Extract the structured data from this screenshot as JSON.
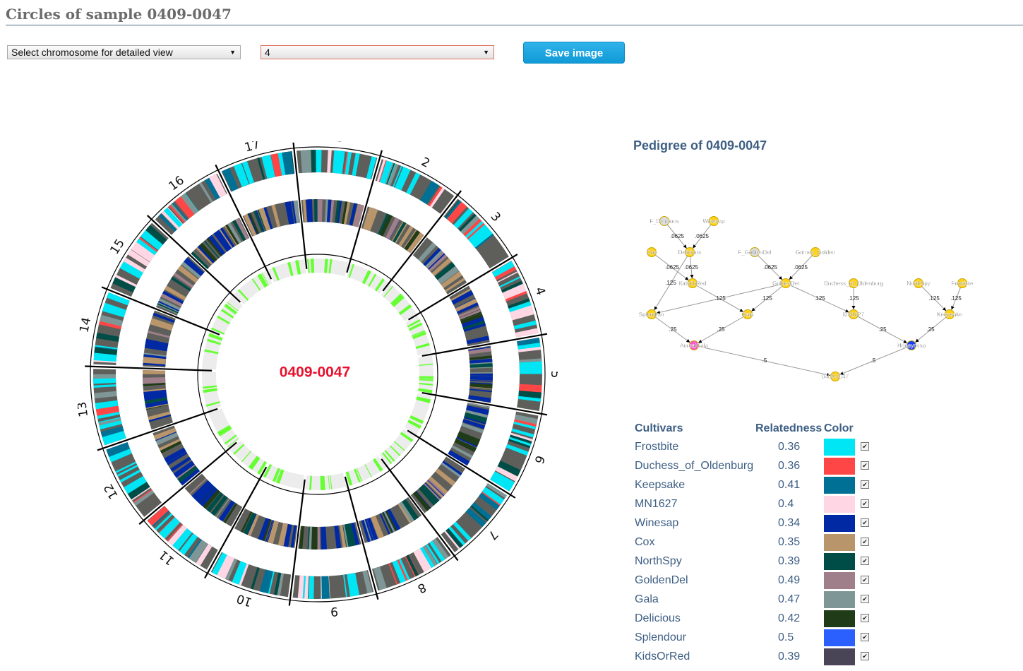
{
  "page": {
    "title": "Circles of sample 0409-0047"
  },
  "controls": {
    "chromosome_select": "Select chromosome for detailed view",
    "level_select": "4",
    "save_button": "Save image"
  },
  "circos": {
    "sample_label": "0409-0047",
    "chromosomes": [
      "1",
      "2",
      "3",
      "4",
      "5",
      "6",
      "7",
      "8",
      "9",
      "10",
      "11",
      "12",
      "13",
      "14",
      "15",
      "16",
      "17"
    ],
    "colors": {
      "base": "#5e5f5b",
      "frostbite": "#00e6f5",
      "duchess": "#ff4646",
      "keepsake": "#007095",
      "mn1627": "#ffd6e4",
      "winesap": "#0029a3",
      "cox": "#b8956a",
      "northspy": "#004d47",
      "goldendel": "#9e7f8a",
      "gala": "#7f9696",
      "delicious": "#1f3b17",
      "outer_stripe": "#00e6f5",
      "inner_stripe": "#66ff33",
      "inner_base": "#ececec",
      "sample_label": "#e8112d"
    }
  },
  "pedigree": {
    "title": "Pedigree of 0409-0047",
    "nodes": [
      {
        "id": "F_Delicious",
        "color": "#d9d9d9"
      },
      {
        "id": "Winesap",
        "color": "#ffd21a"
      },
      {
        "id": "Cox",
        "color": "#ffd21a"
      },
      {
        "id": "Delicious",
        "color": "#ffd21a"
      },
      {
        "id": "F_GoldenDel",
        "color": "#d9d9d9"
      },
      {
        "id": "Grimes_Golden",
        "color": "#ffd21a"
      },
      {
        "id": "KidsOrRed",
        "color": "#ffd21a"
      },
      {
        "id": "GoldenDel",
        "color": "#ffd21a"
      },
      {
        "id": "Duchess_of_Oldenburg",
        "color": "#ffd21a"
      },
      {
        "id": "NorthSpy",
        "color": "#ffd21a"
      },
      {
        "id": "Frostbite",
        "color": "#ffd21a"
      },
      {
        "id": "Splendour",
        "color": "#ffd21a"
      },
      {
        "id": "Gala",
        "color": "#ffd21a"
      },
      {
        "id": "MN1627",
        "color": "#ffd21a"
      },
      {
        "id": "Keepsake",
        "color": "#ffd21a"
      },
      {
        "id": "AurealGala",
        "color": "#ff55cc"
      },
      {
        "id": "Honeycrisp",
        "color": "#1a3cff"
      },
      {
        "id": "0409-0047",
        "color": "#ffd21a"
      }
    ],
    "edges": [
      {
        "from": "F_Delicious",
        "to": "Delicious",
        "label": ".0625"
      },
      {
        "from": "Winesap",
        "to": "Delicious",
        "label": ".0625"
      },
      {
        "from": "Cox",
        "to": "KidsOrRed",
        "label": ".0625"
      },
      {
        "from": "Delicious",
        "to": "KidsOrRed",
        "label": ".0625"
      },
      {
        "from": "Delicious",
        "to": "Splendour",
        "label": ".125"
      },
      {
        "from": "F_GoldenDel",
        "to": "GoldenDel",
        "label": ".0625"
      },
      {
        "from": "Grimes_Golden",
        "to": "GoldenDel",
        "label": ".0625"
      },
      {
        "from": "KidsOrRed",
        "to": "Gala",
        "label": ".125"
      },
      {
        "from": "GoldenDel",
        "to": "Splendour",
        "label": ""
      },
      {
        "from": "GoldenDel",
        "to": "Gala",
        "label": ".125"
      },
      {
        "from": "GoldenDel",
        "to": "MN1627",
        "label": ".125"
      },
      {
        "from": "Duchess_of_Oldenburg",
        "to": "MN1627",
        "label": ".125"
      },
      {
        "from": "NorthSpy",
        "to": "Keepsake",
        "label": ".125"
      },
      {
        "from": "Frostbite",
        "to": "Keepsake",
        "label": ".125"
      },
      {
        "from": "Splendour",
        "to": "AurealGala",
        "label": ".25"
      },
      {
        "from": "Gala",
        "to": "AurealGala",
        "label": ".25"
      },
      {
        "from": "MN1627",
        "to": "Honeycrisp",
        "label": ".25"
      },
      {
        "from": "Keepsake",
        "to": "Honeycrisp",
        "label": ".25"
      },
      {
        "from": "AurealGala",
        "to": "0409-0047",
        "label": ".5"
      },
      {
        "from": "Honeycrisp",
        "to": "0409-0047",
        "label": ".5"
      }
    ]
  },
  "cultivars": {
    "headers": {
      "name": "Cultivars",
      "relatedness": "Relatedness",
      "color": "Color"
    },
    "rows": [
      {
        "name": "Frostbite",
        "relatedness": "0.36",
        "color": "#00e6f5",
        "checked": "✔"
      },
      {
        "name": "Duchess_of_Oldenburg",
        "relatedness": "0.36",
        "color": "#ff4646",
        "checked": "✔"
      },
      {
        "name": "Keepsake",
        "relatedness": "0.41",
        "color": "#007095",
        "checked": "✔"
      },
      {
        "name": "MN1627",
        "relatedness": "0.4",
        "color": "#ffd6e4",
        "checked": "✔"
      },
      {
        "name": "Winesap",
        "relatedness": "0.34",
        "color": "#0029a3",
        "checked": "✔"
      },
      {
        "name": "Cox",
        "relatedness": "0.35",
        "color": "#b8956a",
        "checked": "✔"
      },
      {
        "name": "NorthSpy",
        "relatedness": "0.39",
        "color": "#004d47",
        "checked": "✔"
      },
      {
        "name": "GoldenDel",
        "relatedness": "0.49",
        "color": "#9e7f8a",
        "checked": "✔"
      },
      {
        "name": "Gala",
        "relatedness": "0.47",
        "color": "#7f9696",
        "checked": "✔"
      },
      {
        "name": "Delicious",
        "relatedness": "0.42",
        "color": "#1f3b17",
        "checked": "✔"
      },
      {
        "name": "Splendour",
        "relatedness": "0.5",
        "color": "#2b60ff",
        "checked": "✔"
      },
      {
        "name": "KidsOrRed",
        "relatedness": "0.39",
        "color": "#4a4457",
        "checked": "✔"
      }
    ]
  }
}
